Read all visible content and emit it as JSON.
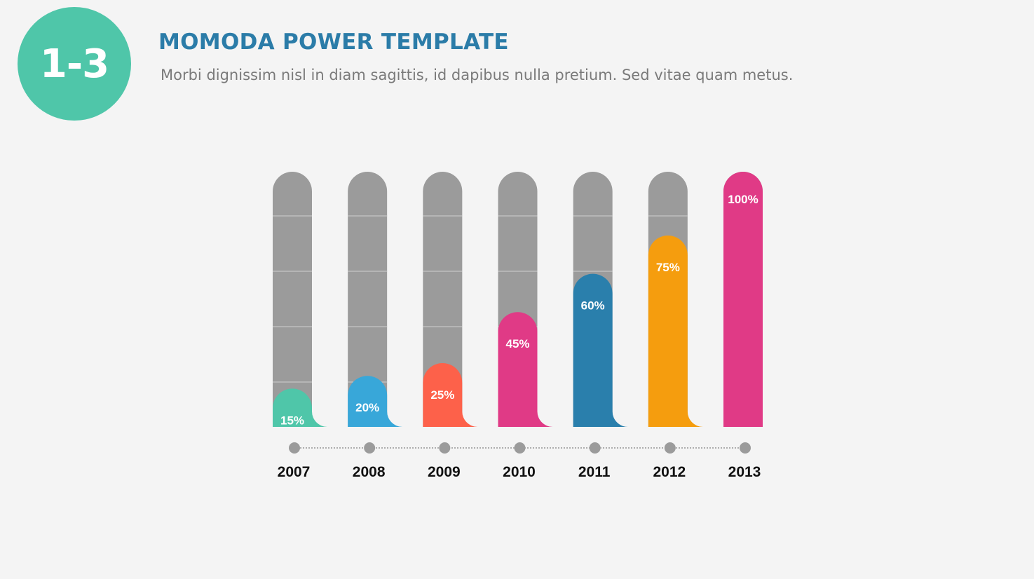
{
  "slide": {
    "badge": "1-3",
    "title": "MOMODA POWER TEMPLATE",
    "subtitle": "Morbi dignissim nisl in diam sagittis, id dapibus nulla pretium. Sed vitae quam metus."
  },
  "chart_data": {
    "type": "bar",
    "title": "",
    "xlabel": "",
    "ylabel": "",
    "ylim": [
      0,
      100
    ],
    "categories": [
      "2007",
      "2008",
      "2009",
      "2010",
      "2011",
      "2012",
      "2013"
    ],
    "values": [
      15,
      20,
      25,
      45,
      60,
      75,
      100
    ],
    "labels": [
      "15%",
      "20%",
      "25%",
      "45%",
      "60%",
      "75%",
      "100%"
    ],
    "colors": [
      "#4fc6a9",
      "#38a7d9",
      "#fd614a",
      "#e03a86",
      "#2a7fac",
      "#f59d0e",
      "#e03a86"
    ],
    "track_color": "#9b9b9b",
    "timeline_color": "#9b9b9b"
  }
}
